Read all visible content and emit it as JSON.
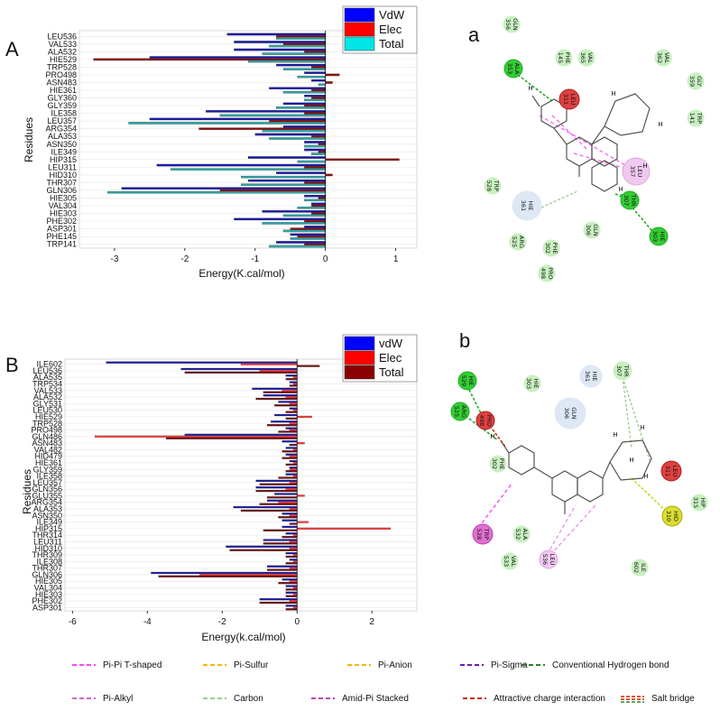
{
  "chart_data": [
    {
      "type": "bar",
      "orientation": "horizontal",
      "panel": "A",
      "ylabel": "Residues",
      "xlabel": "Energy(K.cal/mol)",
      "xlim": [
        -3.5,
        1.3
      ],
      "xticks": [
        "-3",
        "-2",
        "-1",
        "0",
        "1"
      ],
      "categories": [
        "LEU536",
        "VAL533",
        "ALA532",
        "HIE529",
        "TRP528",
        "PRO498",
        "ASN483",
        "HIE361",
        "GLY360",
        "GLY359",
        "ILE358",
        "LEU357",
        "ARG354",
        "ALA353",
        "ASN350",
        "ILE349",
        "HIP315",
        "LEU311",
        "HID310",
        "THR307",
        "GLN306",
        "HIE305",
        "VAL304",
        "HIE303",
        "PHE302",
        "ASP301",
        "PHE145",
        "TRP141"
      ],
      "series": [
        {
          "name": "VdW",
          "color": "#1a1aa8",
          "values": [
            -1.4,
            -1.3,
            -1.3,
            -2.5,
            -0.7,
            -0.3,
            -0.2,
            -0.8,
            -0.3,
            -0.6,
            -1.7,
            -2.5,
            -0.6,
            -1.0,
            -0.3,
            -0.3,
            -1.1,
            -2.4,
            -0.7,
            -1.1,
            -2.9,
            -0.3,
            -0.2,
            -0.9,
            -1.3,
            -0.3,
            -0.5,
            -0.7
          ]
        },
        {
          "name": "Elec",
          "color": "#8b1010",
          "values": [
            -0.7,
            -0.6,
            -0.3,
            -3.3,
            -0.2,
            0.2,
            0.1,
            -0.2,
            -0.2,
            -0.3,
            -0.3,
            -0.8,
            -1.8,
            -0.2,
            -0.1,
            -0.1,
            1.05,
            -0.3,
            0.1,
            -0.3,
            -1.5,
            -0.1,
            -0.2,
            -0.2,
            -0.3,
            -0.5,
            -0.4,
            -0.3
          ]
        },
        {
          "name": "Total",
          "color": "#2ea6a6",
          "values": [
            -0.7,
            -0.8,
            -0.9,
            -1.1,
            -0.6,
            -0.4,
            -0.1,
            -0.6,
            -0.3,
            -0.7,
            -1.5,
            -2.8,
            -0.9,
            -0.8,
            -0.3,
            -0.2,
            -0.4,
            -2.2,
            -1.2,
            -1.2,
            -3.1,
            -0.3,
            -0.4,
            -0.6,
            -0.9,
            -0.6,
            -0.5,
            -0.8
          ]
        }
      ],
      "legend": [
        {
          "label": "VdW",
          "color": "#0000ff"
        },
        {
          "label": "Elec",
          "color": "#ff0000"
        },
        {
          "label": "Total",
          "color": "#00e5e5"
        }
      ],
      "legend_position": "top-right"
    },
    {
      "type": "bar",
      "orientation": "horizontal",
      "panel": "B",
      "ylabel": "Residues",
      "xlabel": "Energy(k.cal/mol)",
      "xlim": [
        -6.2,
        3.2
      ],
      "xticks": [
        "-6",
        "-4",
        "-2",
        "0",
        "2"
      ],
      "categories": [
        "ILE602",
        "LEU536",
        "ALA535",
        "TRP534",
        "VAL533",
        "ALA532",
        "GLY531",
        "LEU530",
        "HIE529",
        "TRP528",
        "PRO498",
        "GLN486",
        "ASN483",
        "VAL482",
        "HID479",
        "HIE361",
        "GLY359",
        "ILE358",
        "LEU357",
        "GLN356",
        "GLU355",
        "ARG354",
        "ALA353",
        "ASN350",
        "ILE349",
        "HIP315",
        "THR314",
        "LEU311",
        "HID310",
        "THR309",
        "ILE308",
        "THR307",
        "GLN306",
        "HIE305",
        "VAL304",
        "HIE303",
        "PHE302",
        "ASP301"
      ],
      "series": [
        {
          "name": "vdW",
          "color": "#1a1aa8",
          "values": [
            -5.1,
            -3.1,
            -0.3,
            -0.2,
            -1.2,
            -0.9,
            -0.5,
            -0.2,
            -0.6,
            -0.7,
            -0.3,
            -3.0,
            -0.4,
            -0.3,
            -0.3,
            -0.2,
            -0.2,
            -0.3,
            -1.1,
            -1.1,
            -0.6,
            -0.8,
            -1.7,
            -0.4,
            -0.4,
            -0.4,
            -0.3,
            -0.9,
            -1.9,
            -0.3,
            -0.2,
            -0.8,
            -3.9,
            -0.4,
            -0.3,
            -0.3,
            -1.0,
            -0.3
          ]
        },
        {
          "name": "Elec",
          "color": "#ff3b3b",
          "values": [
            -1.5,
            -1.0,
            -0.1,
            -0.1,
            -0.4,
            -0.3,
            -0.2,
            -0.1,
            0.4,
            -0.2,
            -0.2,
            -5.4,
            0.2,
            -0.1,
            -0.2,
            -0.1,
            -0.2,
            -0.1,
            -0.2,
            -0.3,
            0.2,
            -0.5,
            -0.2,
            -0.2,
            0.3,
            2.5,
            -0.1,
            -0.2,
            -0.2,
            -0.1,
            -0.1,
            -0.2,
            -2.6,
            -0.2,
            -0.1,
            -0.1,
            -0.2,
            -0.1
          ]
        },
        {
          "name": "Total",
          "color": "#6e0f0f",
          "values": [
            0.6,
            -3.0,
            -0.3,
            -0.2,
            -0.9,
            -1.1,
            -0.6,
            -0.3,
            -0.3,
            -0.8,
            -0.5,
            -3.5,
            -0.2,
            -0.4,
            -0.4,
            -0.3,
            -0.3,
            -0.5,
            -1.0,
            -1.1,
            -0.8,
            -1.0,
            -1.5,
            -0.5,
            -0.2,
            -0.9,
            -0.4,
            -0.9,
            -1.8,
            -0.3,
            -0.3,
            -0.8,
            -3.7,
            -0.5,
            -0.3,
            -0.3,
            -1.0,
            -0.3
          ]
        }
      ],
      "legend": [
        {
          "label": "vdW",
          "color": "#0000ff"
        },
        {
          "label": "Elec",
          "color": "#ff0000"
        },
        {
          "label": "Total",
          "color": "#8b0000"
        }
      ],
      "legend_position": "top-right"
    }
  ],
  "panels": {
    "A": "A",
    "B": "B",
    "a": "a",
    "b": "b"
  },
  "diagram_a": {
    "residues": [
      {
        "name": "GLN\n356",
        "kind": "vdw"
      },
      {
        "name": "ALA\n353",
        "kind": "hbond"
      },
      {
        "name": "PHE\n145",
        "kind": "vdw"
      },
      {
        "name": "VAL\n365",
        "kind": "vdw"
      },
      {
        "name": "VAL\n362",
        "kind": "vdw"
      },
      {
        "name": "GLY\n359",
        "kind": "vdw"
      },
      {
        "name": "LEU\n311",
        "kind": "charge"
      },
      {
        "name": "TRP\n141",
        "kind": "vdw"
      },
      {
        "name": "LEU\n357",
        "kind": "pialkyl"
      },
      {
        "name": "TRP\n528",
        "kind": "vdw"
      },
      {
        "name": "HIE\n361",
        "kind": "carbon"
      },
      {
        "name": "THR\n307",
        "kind": "hbond"
      },
      {
        "name": "GLN\n306",
        "kind": "vdw"
      },
      {
        "name": "ARG\n525",
        "kind": "vdw"
      },
      {
        "name": "PHE\n302",
        "kind": "vdw"
      },
      {
        "name": "HIE\n303",
        "kind": "hbond"
      },
      {
        "name": "PRO\n498",
        "kind": "vdw"
      }
    ],
    "atoms": [
      "H",
      "H",
      "H",
      "H",
      "H"
    ]
  },
  "diagram_b": {
    "residues": [
      {
        "name": "HIE\n529",
        "kind": "hbond"
      },
      {
        "name": "HIE\n303",
        "kind": "vdw"
      },
      {
        "name": "HIE\n361",
        "kind": "carbon"
      },
      {
        "name": "THR\n307",
        "kind": "vdw"
      },
      {
        "name": "PRO\n498",
        "kind": "charge"
      },
      {
        "name": "ARG\n525",
        "kind": "hbond"
      },
      {
        "name": "GLN\n306",
        "kind": "carbon"
      },
      {
        "name": "PHE\n302",
        "kind": "vdw"
      },
      {
        "name": "LEU\n311",
        "kind": "charge"
      },
      {
        "name": "HIP\n315",
        "kind": "vdw"
      },
      {
        "name": "HID\n310",
        "kind": "sulfur"
      },
      {
        "name": "TRP\n528",
        "kind": "pipi"
      },
      {
        "name": "ALA\n532",
        "kind": "vdw"
      },
      {
        "name": "VAL\n533",
        "kind": "vdw"
      },
      {
        "name": "LEU\n536",
        "kind": "pialkyl"
      },
      {
        "name": "ILE\n602",
        "kind": "vdw"
      }
    ],
    "atoms": [
      "H",
      "H",
      "H",
      "H",
      "H"
    ]
  },
  "key": [
    {
      "label": "Pi-Pi T-shaped",
      "color": "#ff44ff"
    },
    {
      "label": "Pi-Sulfur",
      "color": "#f0b800"
    },
    {
      "label": "Pi-Anion",
      "color": "#f0b800"
    },
    {
      "label": "Pi-Sigma",
      "color": "#6a1fb0"
    },
    {
      "label": "Conventional Hydrogen bond",
      "color": "#2e7d2e"
    },
    {
      "label": "Pi-Alkyl",
      "color": "#cc66cc"
    },
    {
      "label": "Carbon",
      "color": "#99cc88"
    },
    {
      "label": "Amid-Pi Stacked",
      "color": "#bb44bb"
    },
    {
      "label": "Attractive charge interaction",
      "color": "#cc2200"
    },
    {
      "label": "Salt bridge",
      "color": "#cc2200",
      "color2": "#2e8b2e"
    }
  ]
}
